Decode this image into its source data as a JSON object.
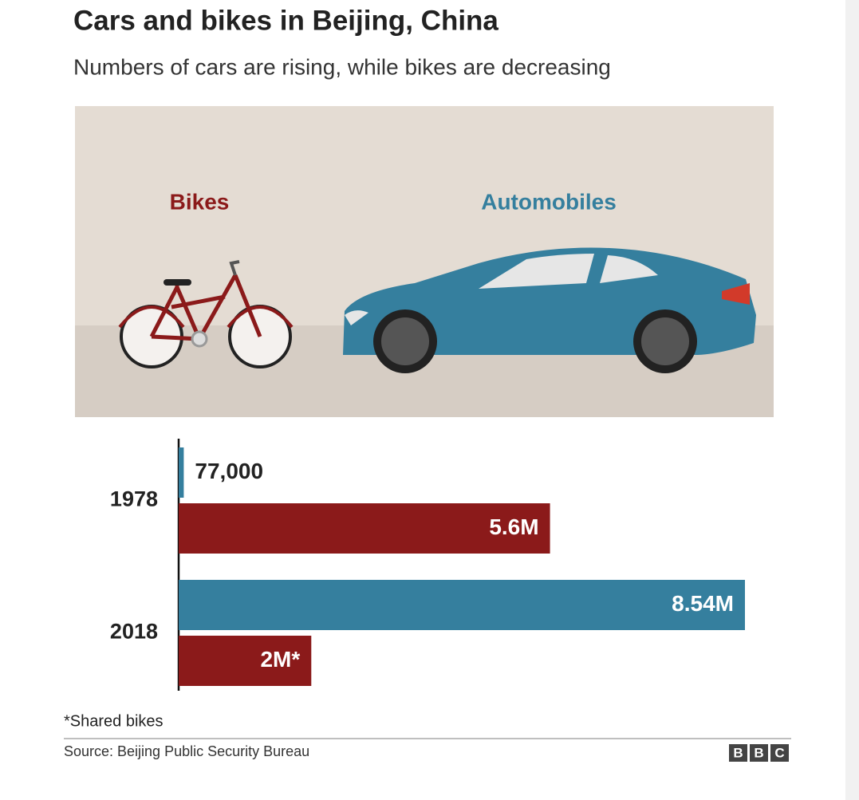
{
  "chart_data": {
    "type": "hbar",
    "title": "Cars and bikes in Beijing, China",
    "subtitle": "Numbers of cars are rising, while bikes are decreasing",
    "categories": [
      "1978",
      "2018"
    ],
    "series": [
      {
        "name": "Automobiles",
        "color": "#357f9e",
        "values": [
          77000,
          8540000
        ],
        "value_labels": [
          "77,000",
          "8.54M"
        ]
      },
      {
        "name": "Bikes",
        "color": "#8b1a1a",
        "values": [
          5600000,
          2000000
        ],
        "value_labels": [
          "5.6M",
          "2M*"
        ]
      }
    ],
    "footnote": "*Shared bikes",
    "source": "Source: Beijing Public Security Bureau",
    "logo": [
      "B",
      "B",
      "C"
    ]
  }
}
